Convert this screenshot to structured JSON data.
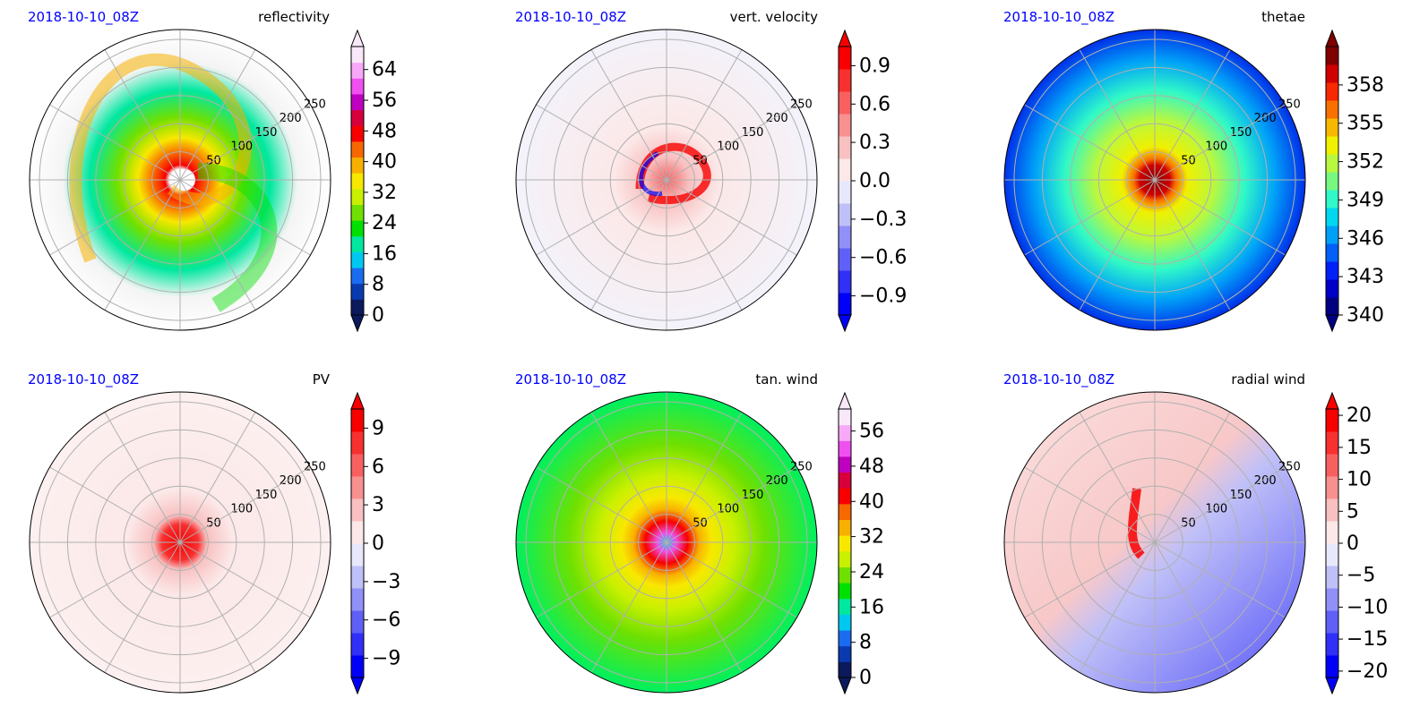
{
  "figure": {
    "panels": [
      {
        "date": "2018-10-10_08Z",
        "title": "reflectivity",
        "colorbar_ticks": [
          "0",
          "8",
          "16",
          "24",
          "32",
          "40",
          "48",
          "56",
          "64"
        ],
        "colorbar_range": [
          0,
          70
        ],
        "colorbar_colors": [
          "#0b1a5c",
          "#0a3ab0",
          "#1a6cf0",
          "#00c8f0",
          "#00e8a0",
          "#00e000",
          "#70e000",
          "#c8f000",
          "#f8e800",
          "#f8b000",
          "#f86800",
          "#f80000",
          "#d8003a",
          "#c000c0",
          "#f050f0",
          "#f8a8f8",
          "#f8e8f8"
        ],
        "extend": "both",
        "range_rings": [
          "50",
          "100",
          "150",
          "200",
          "250"
        ]
      },
      {
        "date": "2018-10-10_08Z",
        "title": "vert. velocity",
        "colorbar_ticks": [
          "−0.9",
          "−0.6",
          "−0.3",
          "0.0",
          "0.3",
          "0.6",
          "0.9"
        ],
        "colorbar_range": [
          -1.05,
          1.05
        ],
        "colorbar_colors": [
          "#0000f8",
          "#3030f8",
          "#6060f8",
          "#9090f8",
          "#c0c0f8",
          "#e8e8fc",
          "#fce8e8",
          "#f8c0c0",
          "#f89090",
          "#f86060",
          "#f83030",
          "#f80000"
        ],
        "extend": "both",
        "range_rings": [
          "50",
          "100",
          "150",
          "200",
          "250"
        ]
      },
      {
        "date": "2018-10-10_08Z",
        "title": "thetae",
        "colorbar_ticks": [
          "340",
          "343",
          "346",
          "349",
          "352",
          "355",
          "358"
        ],
        "colorbar_range": [
          340,
          361
        ],
        "colorbar_colors": [
          "#000080",
          "#0000c8",
          "#0020f8",
          "#0060f8",
          "#00a0f8",
          "#00d8f0",
          "#30f8c8",
          "#78f880",
          "#b8f840",
          "#f0f000",
          "#f8b800",
          "#f87000",
          "#f82800",
          "#d00000",
          "#800000"
        ],
        "extend": "both",
        "range_rings": [
          "50",
          "100",
          "150",
          "200",
          "250"
        ]
      },
      {
        "date": "2018-10-10_08Z",
        "title": "PV",
        "colorbar_ticks": [
          "−9",
          "−6",
          "−3",
          "0",
          "3",
          "6",
          "9"
        ],
        "colorbar_range": [
          -10.5,
          10.5
        ],
        "colorbar_colors": [
          "#0000f8",
          "#3030f8",
          "#6060f8",
          "#9090f8",
          "#c0c0f8",
          "#e8e8fc",
          "#fce8e8",
          "#f8c0c0",
          "#f89090",
          "#f86060",
          "#f83030",
          "#f80000"
        ],
        "extend": "both",
        "range_rings": [
          "50",
          "100",
          "150",
          "200",
          "250"
        ]
      },
      {
        "date": "2018-10-10_08Z",
        "title": "tan. wind",
        "colorbar_ticks": [
          "0",
          "8",
          "16",
          "24",
          "32",
          "40",
          "48",
          "56"
        ],
        "colorbar_range": [
          0,
          61
        ],
        "colorbar_colors": [
          "#0b1a5c",
          "#0a3ab0",
          "#1a6cf0",
          "#00c8f0",
          "#00e8a0",
          "#00e000",
          "#70e000",
          "#c8f000",
          "#f8e800",
          "#f8b000",
          "#f86800",
          "#f80000",
          "#d8003a",
          "#c000c0",
          "#f050f0",
          "#f8a8f8",
          "#f8e8f8"
        ],
        "extend": "both",
        "range_rings": [
          "50",
          "100",
          "150",
          "200",
          "250"
        ]
      },
      {
        "date": "2018-10-10_08Z",
        "title": "radial wind",
        "colorbar_ticks": [
          "−20",
          "−15",
          "−10",
          "−5",
          "0",
          "5",
          "10",
          "15",
          "20"
        ],
        "colorbar_range": [
          -21,
          21
        ],
        "colorbar_colors": [
          "#0000f8",
          "#3030f8",
          "#6060f8",
          "#9090f8",
          "#c0c0f8",
          "#e8e8fc",
          "#fce8e8",
          "#f8c0c0",
          "#f89090",
          "#f86060",
          "#f83030",
          "#f80000"
        ],
        "extend": "both",
        "range_rings": [
          "50",
          "100",
          "150",
          "200",
          "250"
        ]
      }
    ],
    "colors": {
      "date_text": "#0000ff",
      "grid": "#b0b0b0",
      "frame": "#000000"
    }
  },
  "chart_data": [
    {
      "type": "heatmap",
      "projection": "polar",
      "title": "reflectivity",
      "date_label": "2018-10-10_08Z",
      "radial_ticks": [
        50,
        100,
        150,
        200,
        250
      ],
      "colorbar_ticks": [
        0,
        8,
        16,
        24,
        32,
        40,
        48,
        56,
        64
      ]
    },
    {
      "type": "heatmap",
      "projection": "polar",
      "title": "vert. velocity",
      "date_label": "2018-10-10_08Z",
      "radial_ticks": [
        50,
        100,
        150,
        200,
        250
      ],
      "colorbar_ticks": [
        -0.9,
        -0.6,
        -0.3,
        0.0,
        0.3,
        0.6,
        0.9
      ]
    },
    {
      "type": "heatmap",
      "projection": "polar",
      "title": "thetae",
      "date_label": "2018-10-10_08Z",
      "radial_ticks": [
        50,
        100,
        150,
        200,
        250
      ],
      "colorbar_ticks": [
        340,
        343,
        346,
        349,
        352,
        355,
        358
      ]
    },
    {
      "type": "heatmap",
      "projection": "polar",
      "title": "PV",
      "date_label": "2018-10-10_08Z",
      "radial_ticks": [
        50,
        100,
        150,
        200,
        250
      ],
      "colorbar_ticks": [
        -9,
        -6,
        -3,
        0,
        3,
        6,
        9
      ]
    },
    {
      "type": "heatmap",
      "projection": "polar",
      "title": "tan. wind",
      "date_label": "2018-10-10_08Z",
      "radial_ticks": [
        50,
        100,
        150,
        200,
        250
      ],
      "colorbar_ticks": [
        0,
        8,
        16,
        24,
        32,
        40,
        48,
        56
      ]
    },
    {
      "type": "heatmap",
      "projection": "polar",
      "title": "radial wind",
      "date_label": "2018-10-10_08Z",
      "radial_ticks": [
        50,
        100,
        150,
        200,
        250
      ],
      "colorbar_ticks": [
        -20,
        -15,
        -10,
        -5,
        0,
        5,
        10,
        15,
        20
      ]
    }
  ]
}
